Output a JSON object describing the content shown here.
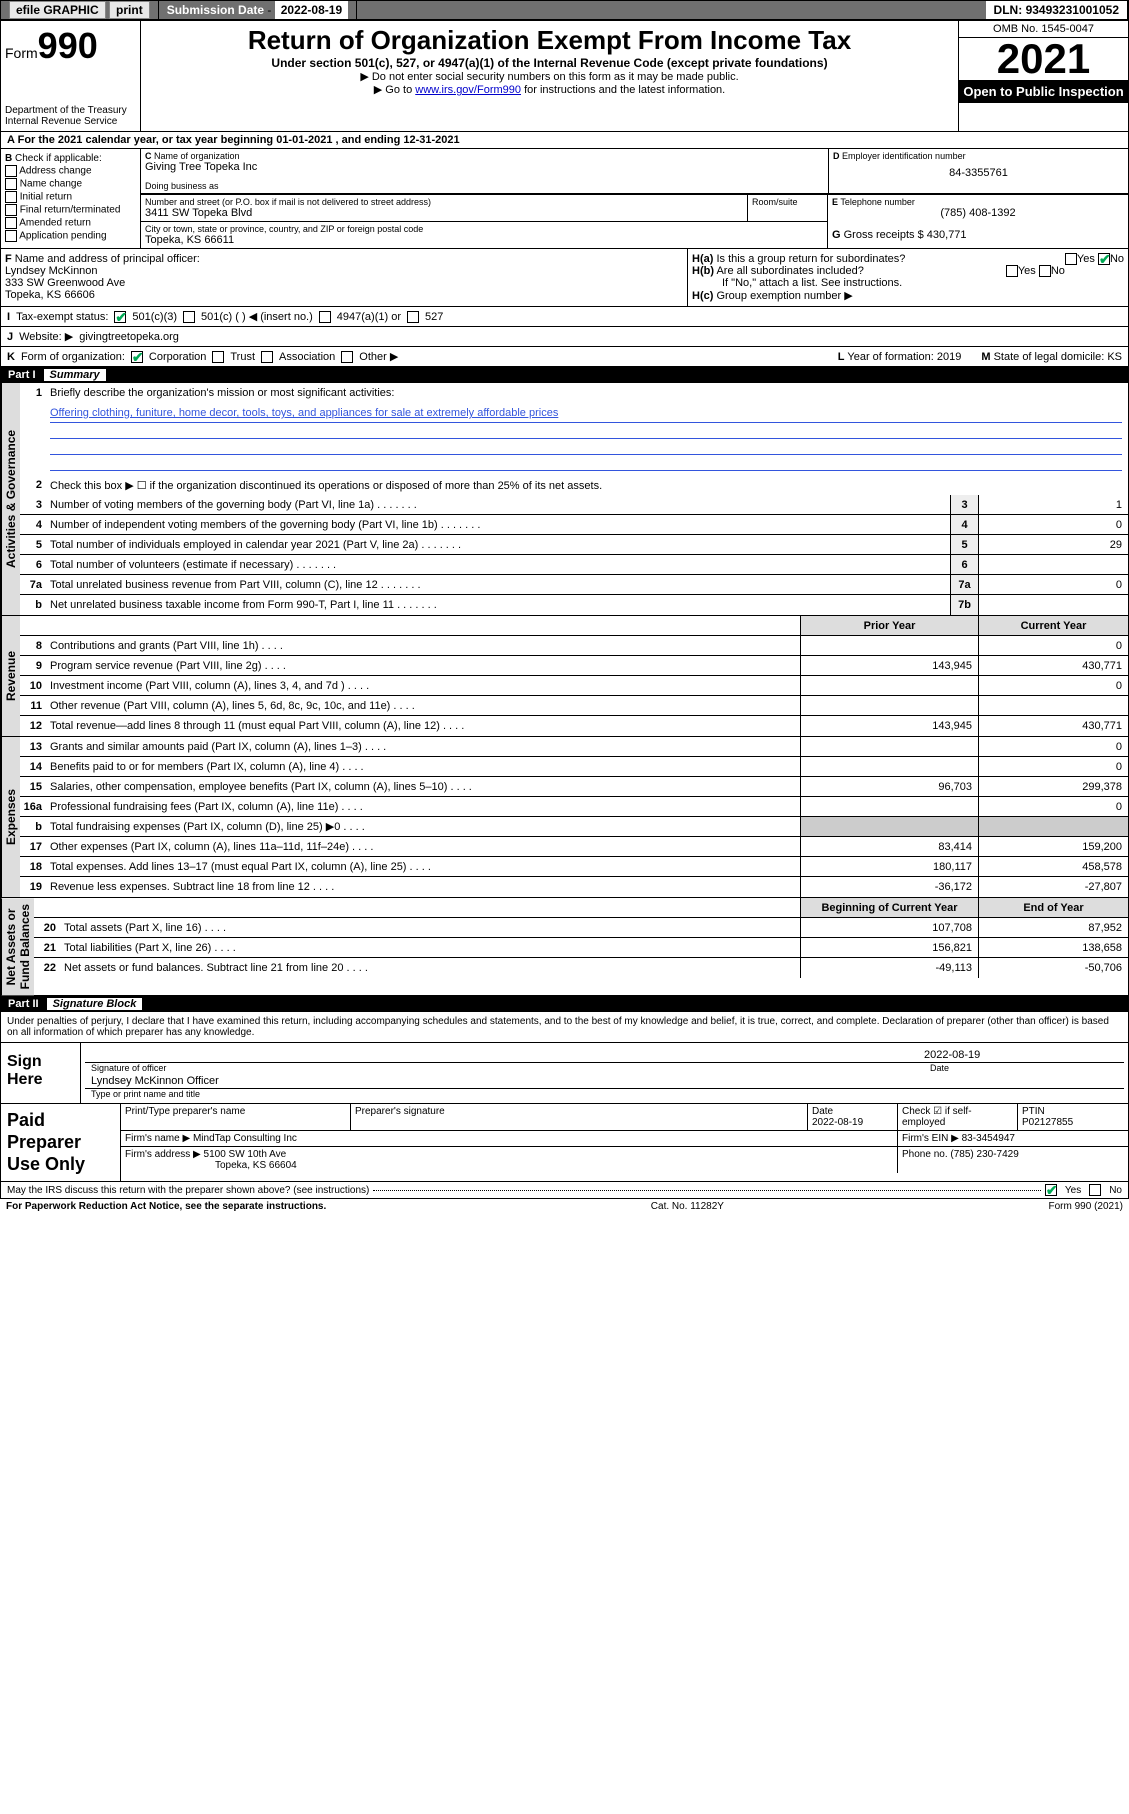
{
  "topbar": {
    "efile_label": "efile GRAPHIC",
    "print_btn": "print",
    "sub_date_label": "Submission Date",
    "sub_date": "2022-08-19",
    "dln_label": "DLN:",
    "dln": "93493231001052"
  },
  "header": {
    "form_label": "Form",
    "form_num": "990",
    "dept": "Department of the Treasury\nInternal Revenue Service",
    "title": "Return of Organization Exempt From Income Tax",
    "sub": "Under section 501(c), 527, or 4947(a)(1) of the Internal Revenue Code (except private foundations)",
    "note1": "▶ Do not enter social security numbers on this form as it may be made public.",
    "note2_pre": "▶ Go to ",
    "note2_link": "www.irs.gov/Form990",
    "note2_post": " for instructions and the latest information.",
    "omb": "OMB No. 1545-0047",
    "year": "2021",
    "otp": "Open to Public Inspection"
  },
  "A": {
    "text": "For the 2021 calendar year, or tax year beginning 01-01-2021   , and ending 12-31-2021"
  },
  "B": {
    "label": "Check if applicable:",
    "opts": [
      "Address change",
      "Name change",
      "Initial return",
      "Final return/terminated",
      "Amended return",
      "Application pending"
    ]
  },
  "C": {
    "name_label": "Name of organization",
    "name": "Giving Tree Topeka Inc",
    "dba_label": "Doing business as",
    "dba": "",
    "street_label": "Number and street (or P.O. box if mail is not delivered to street address)",
    "room_label": "Room/suite",
    "street": "3411 SW Topeka Blvd",
    "city_label": "City or town, state or province, country, and ZIP or foreign postal code",
    "city": "Topeka, KS  66611"
  },
  "D": {
    "label": "Employer identification number",
    "val": "84-3355761"
  },
  "E": {
    "label": "Telephone number",
    "val": "(785) 408-1392"
  },
  "G": {
    "label": "Gross receipts $",
    "val": "430,771"
  },
  "F": {
    "label": "Name and address of principal officer:",
    "name": "Lyndsey McKinnon",
    "addr1": "333 SW Greenwood Ave",
    "addr2": "Topeka, KS  66606"
  },
  "H": {
    "a": "Is this a group return for subordinates?",
    "a_yes": "Yes",
    "a_no": "No",
    "b": "Are all subordinates included?",
    "b_note": "If \"No,\" attach a list. See instructions.",
    "c": "Group exemption number ▶"
  },
  "I": {
    "label": "Tax-exempt status:",
    "o1": "501(c)(3)",
    "o2": "501(c) (  ) ◀ (insert no.)",
    "o3": "4947(a)(1) or",
    "o4": "527"
  },
  "J": {
    "label": "Website: ▶",
    "val": "givingtreetopeka.org"
  },
  "K": {
    "label": "Form of organization:",
    "o1": "Corporation",
    "o2": "Trust",
    "o3": "Association",
    "o4": "Other ▶",
    "L_label": "Year of formation:",
    "L_val": "2019",
    "M_label": "State of legal domicile:",
    "M_val": "KS"
  },
  "part1": {
    "num": "Part I",
    "title": "Summary"
  },
  "summary": {
    "s1": {
      "label_ag": "Activities & Governance",
      "l1": "Briefly describe the organization's mission or most significant activities:",
      "mission": "Offering clothing, funiture, home decor, tools, toys, and appliances for sale at extremely affordable prices",
      "l2": "Check this box ▶ ☐  if the organization discontinued its operations or disposed of more than 25% of its net assets.",
      "rows": [
        {
          "n": "3",
          "t": "Number of voting members of the governing body (Part VI, line 1a)",
          "b": "3",
          "v": "1"
        },
        {
          "n": "4",
          "t": "Number of independent voting members of the governing body (Part VI, line 1b)",
          "b": "4",
          "v": "0"
        },
        {
          "n": "5",
          "t": "Total number of individuals employed in calendar year 2021 (Part V, line 2a)",
          "b": "5",
          "v": "29"
        },
        {
          "n": "6",
          "t": "Total number of volunteers (estimate if necessary)",
          "b": "6",
          "v": ""
        },
        {
          "n": "7a",
          "t": "Total unrelated business revenue from Part VIII, column (C), line 12",
          "b": "7a",
          "v": "0"
        },
        {
          "n": "b",
          "t": "Net unrelated business taxable income from Form 990-T, Part I, line 11",
          "b": "7b",
          "v": ""
        }
      ]
    },
    "s2": {
      "hdr_prior": "Prior Year",
      "hdr_curr": "Current Year",
      "label_rev": "Revenue",
      "rows": [
        {
          "n": "8",
          "t": "Contributions and grants (Part VIII, line 1h)",
          "p": "",
          "c": "0"
        },
        {
          "n": "9",
          "t": "Program service revenue (Part VIII, line 2g)",
          "p": "143,945",
          "c": "430,771"
        },
        {
          "n": "10",
          "t": "Investment income (Part VIII, column (A), lines 3, 4, and 7d )",
          "p": "",
          "c": "0"
        },
        {
          "n": "11",
          "t": "Other revenue (Part VIII, column (A), lines 5, 6d, 8c, 9c, 10c, and 11e)",
          "p": "",
          "c": ""
        },
        {
          "n": "12",
          "t": "Total revenue—add lines 8 through 11 (must equal Part VIII, column (A), line 12)",
          "p": "143,945",
          "c": "430,771"
        }
      ],
      "label_exp": "Expenses",
      "rows_exp": [
        {
          "n": "13",
          "t": "Grants and similar amounts paid (Part IX, column (A), lines 1–3)",
          "p": "",
          "c": "0"
        },
        {
          "n": "14",
          "t": "Benefits paid to or for members (Part IX, column (A), line 4)",
          "p": "",
          "c": "0"
        },
        {
          "n": "15",
          "t": "Salaries, other compensation, employee benefits (Part IX, column (A), lines 5–10)",
          "p": "96,703",
          "c": "299,378"
        },
        {
          "n": "16a",
          "t": "Professional fundraising fees (Part IX, column (A), line 11e)",
          "p": "",
          "c": "0"
        },
        {
          "n": "b",
          "t": "Total fundraising expenses (Part IX, column (D), line 25) ▶0",
          "p": "shade",
          "c": "shade"
        },
        {
          "n": "17",
          "t": "Other expenses (Part IX, column (A), lines 11a–11d, 11f–24e)",
          "p": "83,414",
          "c": "159,200"
        },
        {
          "n": "18",
          "t": "Total expenses. Add lines 13–17 (must equal Part IX, column (A), line 25)",
          "p": "180,117",
          "c": "458,578"
        },
        {
          "n": "19",
          "t": "Revenue less expenses. Subtract line 18 from line 12",
          "p": "-36,172",
          "c": "-27,807"
        }
      ],
      "label_na": "Net Assets or\nFund Balances",
      "hdr_beg": "Beginning of Current Year",
      "hdr_end": "End of Year",
      "rows_na": [
        {
          "n": "20",
          "t": "Total assets (Part X, line 16)",
          "p": "107,708",
          "c": "87,952"
        },
        {
          "n": "21",
          "t": "Total liabilities (Part X, line 26)",
          "p": "156,821",
          "c": "138,658"
        },
        {
          "n": "22",
          "t": "Net assets or fund balances. Subtract line 21 from line 20",
          "p": "-49,113",
          "c": "-50,706"
        }
      ]
    }
  },
  "part2": {
    "num": "Part II",
    "title": "Signature Block"
  },
  "sig": {
    "decl": "Under penalties of perjury, I declare that I have examined this return, including accompanying schedules and statements, and to the best of my knowledge and belief, it is true, correct, and complete. Declaration of preparer (other than officer) is based on all information of which preparer has any knowledge.",
    "sign_here": "Sign Here",
    "sig_of_officer": "Signature of officer",
    "date_lbl": "Date",
    "date": "2022-08-19",
    "name_title": "Lyndsey McKinnon  Officer",
    "name_title_lbl": "Type or print name and title"
  },
  "prep": {
    "label": "Paid Preparer Use Only",
    "h1": "Print/Type preparer's name",
    "h2": "Preparer's signature",
    "h3": "Date",
    "h3v": "2022-08-19",
    "h4": "Check ☑ if self-employed",
    "h5": "PTIN",
    "h5v": "P02127855",
    "firm_name_lbl": "Firm's name    ▶",
    "firm_name": "MindTap Consulting Inc",
    "firm_ein_lbl": "Firm's EIN ▶",
    "firm_ein": "83-3454947",
    "firm_addr_lbl": "Firm's address ▶",
    "firm_addr1": "5100 SW 10th Ave",
    "firm_addr2": "Topeka, KS  66604",
    "phone_lbl": "Phone no.",
    "phone": "(785) 230-7429"
  },
  "footer": {
    "discuss": "May the IRS discuss this return with the preparer shown above? (see instructions)",
    "yes": "Yes",
    "no": "No",
    "paperwork": "For Paperwork Reduction Act Notice, see the separate instructions.",
    "cat": "Cat. No. 11282Y",
    "form": "Form 990 (2021)"
  }
}
